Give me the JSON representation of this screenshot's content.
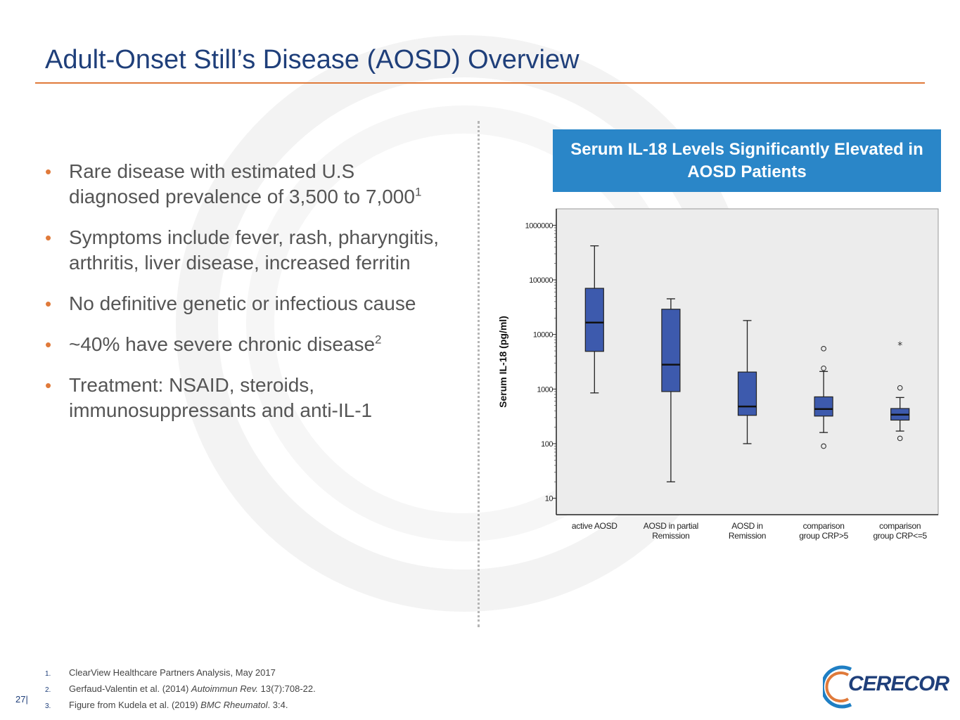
{
  "slide": {
    "title": "Adult-Onset Still’s Disease (AOSD) Overview",
    "page_number": "27|",
    "accent_color": "#e07a3a",
    "title_color": "#1f3f7a"
  },
  "bullets": [
    {
      "text": "Rare disease with estimated U.S diagnosed prevalence of 3,500 to 7,000",
      "sup": "1"
    },
    {
      "text": "Symptoms include fever, rash, pharyngitis, arthritis, liver disease, increased ferritin",
      "sup": ""
    },
    {
      "text": "No definitive genetic or infectious cause",
      "sup": ""
    },
    {
      "text": "~40% have severe chronic disease",
      "sup": "2"
    },
    {
      "text": "Treatment: NSAID, steroids, immunosuppressants and anti-IL-1",
      "sup": ""
    }
  ],
  "callout": {
    "text": "Serum IL-18 Levels Significantly Elevated in AOSD Patients",
    "color": "#2a86c8"
  },
  "chart_data": {
    "type": "box",
    "ylabel": "Serum IL-18 (pg/ml)",
    "yscale": "log",
    "ylim": [
      5,
      2000000
    ],
    "yticks": [
      10,
      100,
      1000,
      10000,
      100000,
      1000000
    ],
    "ytick_labels": [
      "10",
      "100",
      "1000",
      "10000",
      "100000",
      "1000000"
    ],
    "categories": [
      [
        "active AOSD"
      ],
      [
        "AOSD in partial",
        "Remission"
      ],
      [
        "AOSD in",
        "Remission"
      ],
      [
        "comparison",
        "group CRP>5"
      ],
      [
        "comparison",
        "group CRP<=5"
      ]
    ],
    "box_color": "#3d5aad",
    "plot_background": "#ececec",
    "series": [
      {
        "min": 850,
        "q1": 4900,
        "median": 16500,
        "q3": 70000,
        "max": 420000,
        "outliers": [],
        "extremes": []
      },
      {
        "min": 20,
        "q1": 900,
        "median": 2800,
        "q3": 29000,
        "max": 45000,
        "outliers": [],
        "extremes": []
      },
      {
        "min": 100,
        "q1": 330,
        "median": 480,
        "q3": 2050,
        "max": 18000,
        "outliers": [],
        "extremes": []
      },
      {
        "min": 160,
        "q1": 320,
        "median": 430,
        "q3": 720,
        "max": 2100,
        "outliers": [
          5500,
          2400,
          90
        ],
        "extremes": []
      },
      {
        "min": 170,
        "q1": 270,
        "median": 340,
        "q3": 440,
        "max": 700,
        "outliers": [
          1050,
          125
        ],
        "extremes": [
          6500
        ]
      }
    ]
  },
  "footnotes": [
    {
      "num": "1.",
      "text": "ClearView Healthcare Partners Analysis, May 2017",
      "italic": "",
      "tail": ""
    },
    {
      "num": "2.",
      "text": "Gerfaud-Valentin et al. (2014) ",
      "italic": "Autoimmun Rev.",
      "tail": " 13(7):708-22."
    },
    {
      "num": "3.",
      "text": "Figure from Kudela et al. (2019) ",
      "italic": "BMC Rheumatol",
      "tail": ". 3:4."
    }
  ],
  "logo": {
    "text": "CERECOR"
  }
}
